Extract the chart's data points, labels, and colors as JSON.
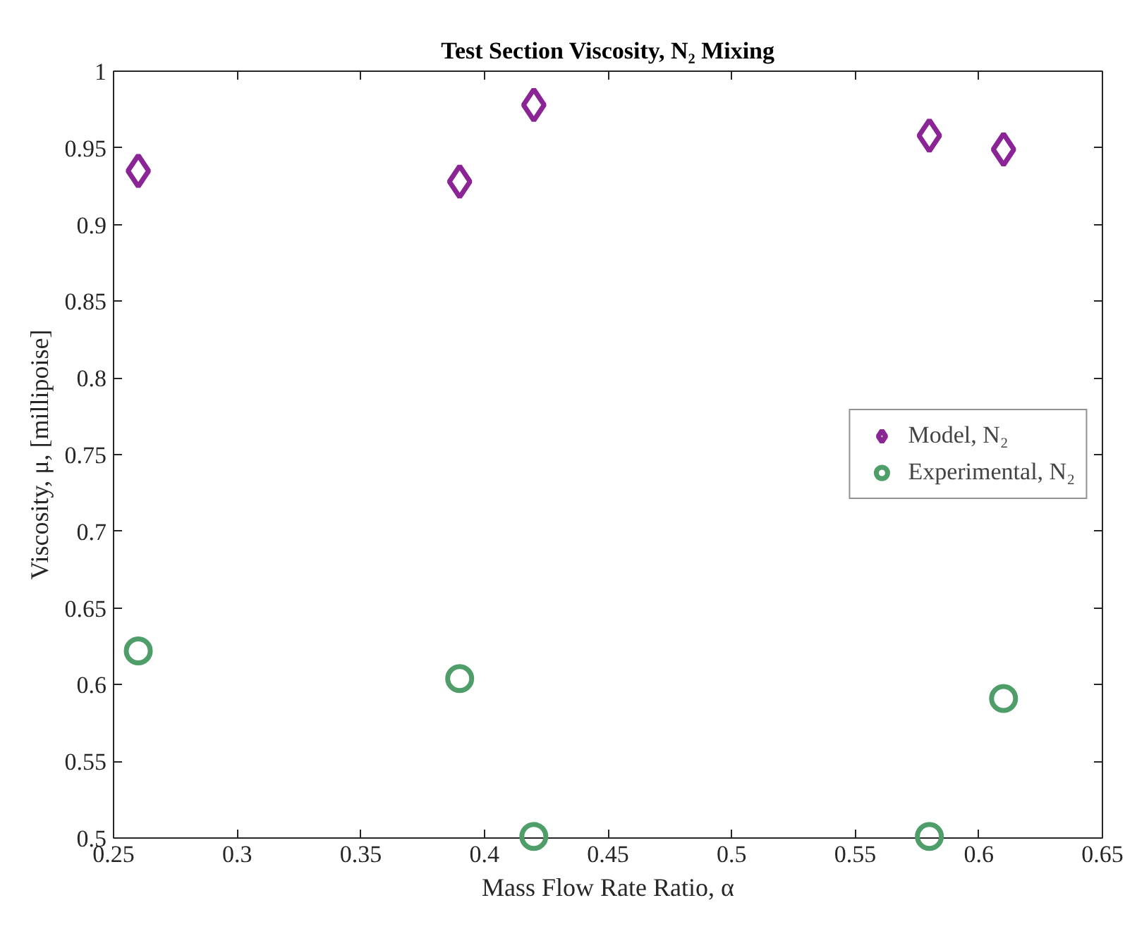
{
  "chart_data": {
    "type": "scatter",
    "title": "Test Section Viscosity, N₂ Mixing",
    "xlabel": "Mass Flow Rate Ratio, α",
    "ylabel": "Viscosity, μ, [millipoise]",
    "x": [
      0.26,
      0.39,
      0.42,
      0.58,
      0.61
    ],
    "series": [
      {
        "name": "Model, N₂",
        "color": "#8b2596",
        "marker": "diamond",
        "values": [
          0.935,
          0.928,
          0.978,
          0.958,
          0.949
        ]
      },
      {
        "name": "Experimental, N₂",
        "color": "#4f9e6a",
        "marker": "circle",
        "values": [
          0.622,
          0.604,
          0.501,
          0.501,
          0.591
        ]
      }
    ],
    "xlim": [
      0.25,
      0.65
    ],
    "xticks": [
      0.25,
      0.3,
      0.35,
      0.4,
      0.45,
      0.5,
      0.55,
      0.6,
      0.65
    ],
    "ylim": [
      0.5,
      1
    ],
    "yticks": [
      0.5,
      0.55,
      0.6,
      0.65,
      0.7,
      0.75,
      0.8,
      0.85,
      0.9,
      0.95,
      1
    ],
    "grid": false,
    "legend": "right"
  }
}
